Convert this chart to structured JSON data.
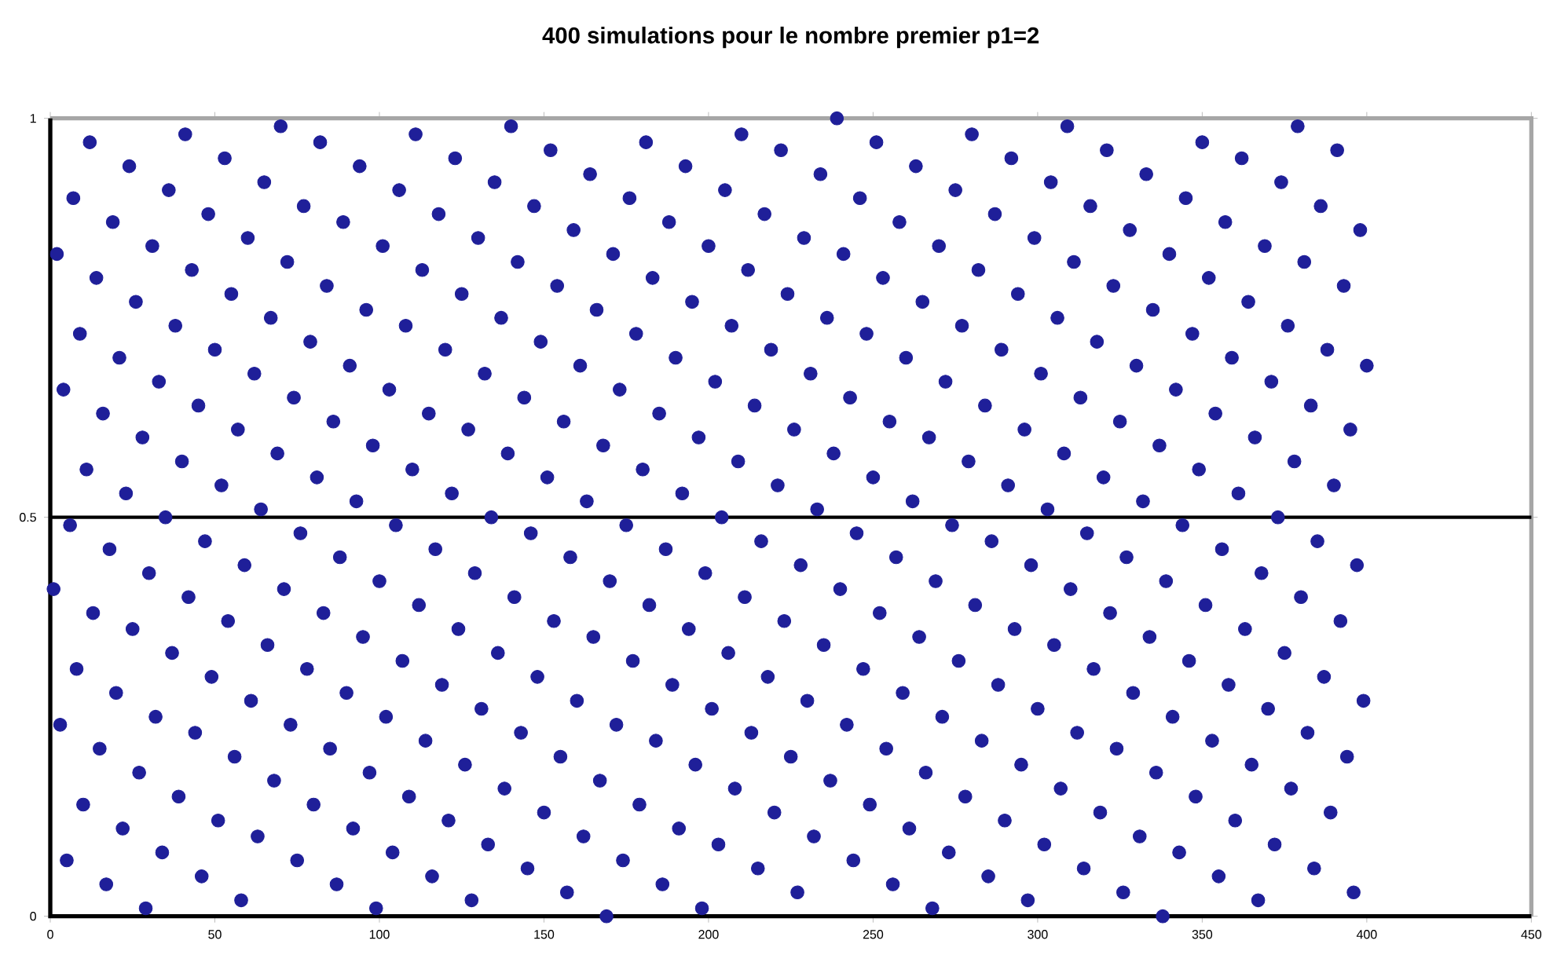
{
  "chart_data": {
    "type": "scatter",
    "title": "400 simulations pour le nombre premier p1=2",
    "x": [
      1,
      2,
      3,
      4,
      5,
      6,
      7,
      8,
      9,
      10,
      11,
      12,
      13,
      14,
      15,
      16,
      17,
      18,
      19,
      20,
      21,
      22,
      23,
      24,
      25,
      26,
      27,
      28,
      29,
      30,
      31,
      32,
      33,
      34,
      35,
      36,
      37,
      38,
      39,
      40,
      41,
      42,
      43,
      44,
      45,
      46,
      47,
      48,
      49,
      50,
      51,
      52,
      53,
      54,
      55,
      56,
      57,
      58,
      59,
      60,
      61,
      62,
      63,
      64,
      65,
      66,
      67,
      68,
      69,
      70,
      71,
      72,
      73,
      74,
      75,
      76,
      77,
      78,
      79,
      80,
      81,
      82,
      83,
      84,
      85,
      86,
      87,
      88,
      89,
      90,
      91,
      92,
      93,
      94,
      95,
      96,
      97,
      98,
      99,
      100,
      101,
      102,
      103,
      104,
      105,
      106,
      107,
      108,
      109,
      110,
      111,
      112,
      113,
      114,
      115,
      116,
      117,
      118,
      119,
      120,
      121,
      122,
      123,
      124,
      125,
      126,
      127,
      128,
      129,
      130,
      131,
      132,
      133,
      134,
      135,
      136,
      137,
      138,
      139,
      140,
      141,
      142,
      143,
      144,
      145,
      146,
      147,
      148,
      149,
      150,
      151,
      152,
      153,
      154,
      155,
      156,
      157,
      158,
      159,
      160,
      161,
      162,
      163,
      164,
      165,
      166,
      167,
      168,
      169,
      170,
      171,
      172,
      173,
      174,
      175,
      176,
      177,
      178,
      179,
      180,
      181,
      182,
      183,
      184,
      185,
      186,
      187,
      188,
      189,
      190,
      191,
      192,
      193,
      194,
      195,
      196,
      197,
      198,
      199,
      200,
      201,
      202,
      203,
      204,
      205,
      206,
      207,
      208,
      209,
      210,
      211,
      212,
      213,
      214,
      215,
      216,
      217,
      218,
      219,
      220,
      221,
      222,
      223,
      224,
      225,
      226,
      227,
      228,
      229,
      230,
      231,
      232,
      233,
      234,
      235,
      236,
      237,
      238,
      239,
      240,
      241,
      242,
      243,
      244,
      245,
      246,
      247,
      248,
      249,
      250,
      251,
      252,
      253,
      254,
      255,
      256,
      257,
      258,
      259,
      260,
      261,
      262,
      263,
      264,
      265,
      266,
      267,
      268,
      269,
      270,
      271,
      272,
      273,
      274,
      275,
      276,
      277,
      278,
      279,
      280,
      281,
      282,
      283,
      284,
      285,
      286,
      287,
      288,
      289,
      290,
      291,
      292,
      293,
      294,
      295,
      296,
      297,
      298,
      299,
      300,
      301,
      302,
      303,
      304,
      305,
      306,
      307,
      308,
      309,
      310,
      311,
      312,
      313,
      314,
      315,
      316,
      317,
      318,
      319,
      320,
      321,
      322,
      323,
      324,
      325,
      326,
      327,
      328,
      329,
      330,
      331,
      332,
      333,
      334,
      335,
      336,
      337,
      338,
      339,
      340,
      341,
      342,
      343,
      344,
      345,
      346,
      347,
      348,
      349,
      350,
      351,
      352,
      353,
      354,
      355,
      356,
      357,
      358,
      359,
      360,
      361,
      362,
      363,
      364,
      365,
      366,
      367,
      368,
      369,
      370,
      371,
      372,
      373,
      374,
      375,
      376,
      377,
      378,
      379,
      380,
      381,
      382,
      383,
      384,
      385,
      386,
      387,
      388,
      389,
      390,
      391,
      392,
      393,
      394,
      395,
      396,
      397,
      398,
      399,
      400
    ],
    "values": [
      0.41,
      0.83,
      0.24,
      0.66,
      0.07,
      0.49,
      0.9,
      0.31,
      0.73,
      0.14,
      0.56,
      0.97,
      0.38,
      0.8,
      0.21,
      0.63,
      0.04,
      0.46,
      0.87,
      0.28,
      0.7,
      0.11,
      0.53,
      0.94,
      0.36,
      0.77,
      0.18,
      0.6,
      0.01,
      0.43,
      0.84,
      0.25,
      0.67,
      0.08,
      0.5,
      0.91,
      0.33,
      0.74,
      0.15,
      0.57,
      0.98,
      0.4,
      0.81,
      0.23,
      0.64,
      0.05,
      0.47,
      0.88,
      0.3,
      0.71,
      0.12,
      0.54,
      0.95,
      0.37,
      0.78,
      0.2,
      0.61,
      0.02,
      0.44,
      0.85,
      0.27,
      0.68,
      0.1,
      0.51,
      0.92,
      0.34,
      0.75,
      0.17,
      0.58,
      0.99,
      0.41,
      0.82,
      0.24,
      0.65,
      0.07,
      0.48,
      0.89,
      0.31,
      0.72,
      0.14,
      0.55,
      0.97,
      0.38,
      0.79,
      0.21,
      0.62,
      0.04,
      0.45,
      0.87,
      0.28,
      0.69,
      0.11,
      0.52,
      0.94,
      0.35,
      0.76,
      0.18,
      0.59,
      0.01,
      0.42,
      0.84,
      0.25,
      0.66,
      0.08,
      0.49,
      0.91,
      0.32,
      0.74,
      0.15,
      0.56,
      0.98,
      0.39,
      0.81,
      0.22,
      0.63,
      0.05,
      0.46,
      0.88,
      0.29,
      0.71,
      0.12,
      0.53,
      0.95,
      0.36,
      0.78,
      0.19,
      0.61,
      0.02,
      0.43,
      0.85,
      0.26,
      0.68,
      0.09,
      0.5,
      0.92,
      0.33,
      0.75,
      0.16,
      0.58,
      0.99,
      0.4,
      0.82,
      0.23,
      0.65,
      0.06,
      0.48,
      0.89,
      0.3,
      0.72,
      0.13,
      0.55,
      0.96,
      0.37,
      0.79,
      0.2,
      0.62,
      0.03,
      0.45,
      0.86,
      0.27,
      0.69,
      0.1,
      0.52,
      0.93,
      0.35,
      0.76,
      0.17,
      0.59,
      0.0,
      0.42,
      0.83,
      0.24,
      0.66,
      0.07,
      0.49,
      0.9,
      0.32,
      0.73,
      0.14,
      0.56,
      0.97,
      0.39,
      0.8,
      0.22,
      0.63,
      0.04,
      0.46,
      0.87,
      0.29,
      0.7,
      0.11,
      0.53,
      0.94,
      0.36,
      0.77,
      0.19,
      0.6,
      0.01,
      0.43,
      0.84,
      0.26,
      0.67,
      0.09,
      0.5,
      0.91,
      0.33,
      0.74,
      0.16,
      0.57,
      0.98,
      0.4,
      0.81,
      0.23,
      0.64,
      0.06,
      0.47,
      0.88,
      0.3,
      0.71,
      0.13,
      0.54,
      0.96,
      0.37,
      0.78,
      0.2,
      0.61,
      0.03,
      0.44,
      0.85,
      0.27,
      0.68,
      0.1,
      0.51,
      0.93,
      0.34,
      0.75,
      0.17,
      0.58,
      1.0,
      0.41,
      0.83,
      0.24,
      0.65,
      0.07,
      0.48,
      0.9,
      0.31,
      0.73,
      0.14,
      0.55,
      0.97,
      0.38,
      0.8,
      0.21,
      0.62,
      0.04,
      0.45,
      0.87,
      0.28,
      0.7,
      0.11,
      0.52,
      0.94,
      0.35,
      0.77,
      0.18,
      0.6,
      0.01,
      0.42,
      0.84,
      0.25,
      0.67,
      0.08,
      0.49,
      0.91,
      0.32,
      0.74,
      0.15,
      0.57,
      0.98,
      0.39,
      0.81,
      0.22,
      0.64,
      0.05,
      0.47,
      0.88,
      0.29,
      0.71,
      0.12,
      0.54,
      0.95,
      0.36,
      0.78,
      0.19,
      0.61,
      0.02,
      0.44,
      0.85,
      0.26,
      0.68,
      0.09,
      0.51,
      0.92,
      0.34,
      0.75,
      0.16,
      0.58,
      0.99,
      0.41,
      0.82,
      0.23,
      0.65,
      0.06,
      0.48,
      0.89,
      0.31,
      0.72,
      0.13,
      0.55,
      0.96,
      0.38,
      0.79,
      0.21,
      0.62,
      0.03,
      0.45,
      0.86,
      0.28,
      0.69,
      0.1,
      0.52,
      0.93,
      0.35,
      0.76,
      0.18,
      0.59,
      0.0,
      0.42,
      0.83,
      0.25,
      0.66,
      0.08,
      0.49,
      0.9,
      0.32,
      0.73,
      0.15,
      0.56,
      0.97,
      0.39,
      0.8,
      0.22,
      0.63,
      0.05,
      0.46,
      0.87,
      0.29,
      0.7,
      0.12,
      0.53,
      0.95,
      0.36,
      0.77,
      0.19,
      0.6,
      0.02,
      0.43,
      0.84,
      0.26,
      0.67,
      0.09,
      0.5,
      0.92,
      0.33,
      0.74,
      0.16,
      0.57,
      0.99,
      0.4,
      0.82,
      0.23,
      0.64,
      0.06,
      0.47,
      0.89,
      0.3,
      0.71,
      0.13,
      0.54,
      0.96,
      0.37,
      0.79,
      0.2,
      0.61,
      0.03,
      0.44,
      0.86,
      0.27,
      0.69
    ],
    "color": "#1f1f99",
    "marker": "circle",
    "xlim": [
      0,
      450
    ],
    "xticks": [
      0,
      50,
      100,
      150,
      200,
      250,
      300,
      350,
      400,
      450
    ],
    "ylim": [
      0,
      1
    ],
    "yticks": [
      0,
      {
        "value": 0.5,
        "label": "0.5"
      },
      1
    ],
    "ref_lines": [
      {
        "axis": "y",
        "value": 0.5,
        "label": null,
        "color": "#000000"
      }
    ],
    "grid": false
  }
}
